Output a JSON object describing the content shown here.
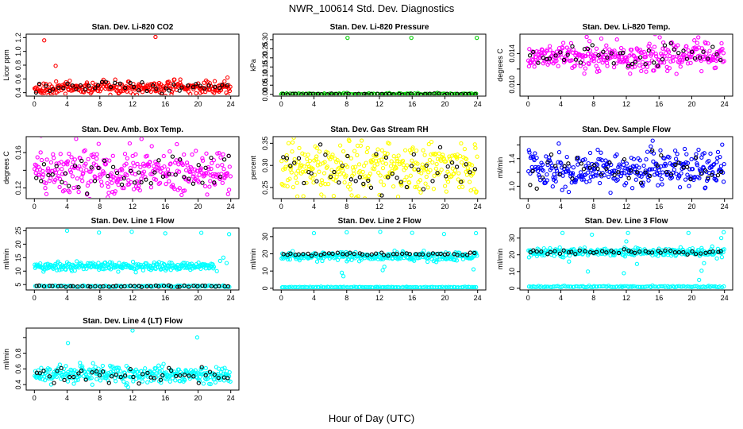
{
  "figure": {
    "title": "NWR_100614  Std. Dev. Diagnostics",
    "xlabel": "Hour of Day (UTC)"
  },
  "chart_data": [
    {
      "type": "scatter",
      "title": "Stan. Dev. Li-820 CO2",
      "ylabel": "Licor ppm",
      "xlim": [
        -1,
        25
      ],
      "ylim": [
        0.35,
        1.25
      ],
      "xticks": [
        0,
        4,
        8,
        12,
        16,
        20,
        24
      ],
      "yticks": [
        0.4,
        0.6,
        0.8,
        1.0,
        1.2
      ],
      "ytick_labels": [
        "0.4",
        "0.6",
        "0.8",
        "1.0",
        "1.2"
      ],
      "series": [
        {
          "color": "#ff0000",
          "count": 300,
          "base": 0.47,
          "spread": 0.045,
          "x_range": [
            0,
            24
          ],
          "outliers": [
            {
              "x": 1.2,
              "y": 1.16
            },
            {
              "x": 2.6,
              "y": 0.79
            },
            {
              "x": 14.8,
              "y": 1.21
            },
            {
              "x": 23.6,
              "y": 0.62
            }
          ]
        },
        {
          "color": "#000000",
          "count": 44,
          "base": 0.48,
          "spread": 0.045,
          "x_range": [
            0,
            24
          ]
        }
      ]
    },
    {
      "type": "scatter",
      "title": "Stan. Dev. Li-820 Pressure",
      "ylabel": "kPa",
      "xlim": [
        -1,
        25
      ],
      "ylim": [
        -0.01,
        0.33
      ],
      "xticks": [
        0,
        4,
        8,
        12,
        16,
        20,
        24
      ],
      "yticks": [
        0.0,
        0.05,
        0.1,
        0.15,
        0.2,
        0.25,
        0.3
      ],
      "ytick_labels": [
        "0.00",
        "0.05",
        "0.10",
        "0.15",
        "0.20",
        "0.25",
        "0.30"
      ],
      "series": [
        {
          "color": "#00cc00",
          "count": 120,
          "base": 0.002,
          "spread": 0.002,
          "x_range": [
            0,
            24
          ],
          "outliers": [
            {
              "x": 8.1,
              "y": 0.31
            },
            {
              "x": 15.9,
              "y": 0.31
            },
            {
              "x": 23.9,
              "y": 0.31
            },
            {
              "x": 0.0,
              "y": 0.0
            }
          ]
        },
        {
          "color": "#000000",
          "count": 44,
          "base": 0.0015,
          "spread": 0.0015,
          "x_range": [
            0,
            24
          ]
        }
      ]
    },
    {
      "type": "scatter",
      "title": "Stan. Dev. Li-820 Temp.",
      "ylabel": "degrees C",
      "xlim": [
        -1,
        25
      ],
      "ylim": [
        0.0085,
        0.0165
      ],
      "xticks": [
        0,
        4,
        8,
        12,
        16,
        20,
        24
      ],
      "yticks": [
        0.01,
        0.012,
        0.014
      ],
      "ytick_labels": [
        "0.010",
        "",
        "0.014"
      ],
      "series": [
        {
          "color": "#ff00ff",
          "count": 330,
          "base": 0.0137,
          "spread": 0.0009,
          "x_range": [
            0,
            24
          ]
        },
        {
          "color": "#000000",
          "count": 46,
          "base": 0.0138,
          "spread": 0.0008,
          "x_range": [
            0,
            24
          ]
        }
      ]
    },
    {
      "type": "scatter",
      "title": "Stan. Dev. Amb. Box Temp.",
      "ylabel": "degrees C",
      "xlim": [
        -1,
        25
      ],
      "ylim": [
        0.108,
        0.178
      ],
      "xticks": [
        0,
        4,
        8,
        12,
        16,
        20,
        24
      ],
      "yticks": [
        0.12,
        0.14,
        0.16
      ],
      "ytick_labels": [
        "0.12",
        "",
        "0.16"
      ],
      "series": [
        {
          "color": "#ff00ff",
          "count": 330,
          "base": 0.138,
          "spread": 0.014,
          "x_range": [
            0,
            24
          ]
        },
        {
          "color": "#000000",
          "count": 46,
          "base": 0.136,
          "spread": 0.01,
          "x_range": [
            0,
            24
          ]
        }
      ]
    },
    {
      "type": "scatter",
      "title": "Stan. Dev. Gas Stream RH",
      "ylabel": "percent",
      "xlim": [
        -1,
        25
      ],
      "ylim": [
        0.225,
        0.365
      ],
      "xticks": [
        0,
        4,
        8,
        12,
        16,
        20,
        24
      ],
      "yticks": [
        0.25,
        0.3,
        0.35
      ],
      "ytick_labels": [
        "0.25",
        "0.30",
        "0.35"
      ],
      "series": [
        {
          "color": "#ffff00",
          "count": 330,
          "base": 0.292,
          "spread": 0.028,
          "x_range": [
            0,
            24
          ]
        },
        {
          "color": "#000000",
          "count": 46,
          "base": 0.29,
          "spread": 0.024,
          "x_range": [
            0,
            24
          ]
        }
      ]
    },
    {
      "type": "scatter",
      "title": "Stan. Dev. Sample Flow",
      "ylabel": "ml/min",
      "xlim": [
        -1,
        25
      ],
      "ylim": [
        0.82,
        1.72
      ],
      "xticks": [
        0,
        4,
        8,
        12,
        16,
        20,
        24
      ],
      "yticks": [
        1.0,
        1.2,
        1.4,
        1.6
      ],
      "ytick_labels": [
        "1.0",
        "",
        "1.4",
        ""
      ],
      "series": [
        {
          "color": "#0000ff",
          "count": 330,
          "base": 1.24,
          "spread": 0.13,
          "x_range": [
            0,
            24
          ]
        },
        {
          "color": "#000000",
          "count": 46,
          "base": 1.25,
          "spread": 0.12,
          "x_range": [
            0,
            24
          ]
        }
      ]
    },
    {
      "type": "scatter",
      "title": "Stan. Dev. Line 1 Flow",
      "ylabel": "ml/min",
      "xlim": [
        -1,
        25
      ],
      "ylim": [
        3,
        26
      ],
      "xticks": [
        0,
        4,
        8,
        12,
        16,
        20,
        24
      ],
      "yticks": [
        5,
        10,
        15,
        20,
        25
      ],
      "ytick_labels": [
        "5",
        "10",
        "15",
        "20",
        "25"
      ],
      "series": [
        {
          "color": "#00ffff",
          "count": 260,
          "base": 11.8,
          "spread": 0.8,
          "x_range": [
            0,
            22
          ],
          "outliers": [
            {
              "x": 4.0,
              "y": 25.0
            },
            {
              "x": 7.9,
              "y": 24.3
            },
            {
              "x": 11.9,
              "y": 24.6
            },
            {
              "x": 16.0,
              "y": 24.0
            },
            {
              "x": 20.4,
              "y": 24.2
            },
            {
              "x": 23.8,
              "y": 23.7
            },
            {
              "x": 22.7,
              "y": 13.8
            },
            {
              "x": 23.1,
              "y": 15.0
            },
            {
              "x": 22.3,
              "y": 10.0
            },
            {
              "x": 23.5,
              "y": 13.0
            },
            {
              "x": 21.8,
              "y": 12.5
            }
          ]
        },
        {
          "color": "#00ffff",
          "count": 120,
          "base": 4.4,
          "spread": 0.15,
          "x_range": [
            0,
            24
          ]
        },
        {
          "color": "#000000",
          "count": 46,
          "base": 4.4,
          "spread": 0.12,
          "x_range": [
            0,
            24
          ]
        }
      ]
    },
    {
      "type": "scatter",
      "title": "Stan. Dev. Line 2 Flow",
      "ylabel": "ml/min",
      "xlim": [
        -1,
        25
      ],
      "ylim": [
        -1,
        35
      ],
      "xticks": [
        0,
        4,
        8,
        12,
        16,
        20,
        24
      ],
      "yticks": [
        0,
        10,
        20,
        30
      ],
      "ytick_labels": [
        "0",
        "10",
        "20",
        "30"
      ],
      "series": [
        {
          "color": "#00ffff",
          "count": 280,
          "base": 18.5,
          "spread": 1.2,
          "x_range": [
            0,
            24
          ],
          "outliers": [
            {
              "x": 4.0,
              "y": 32.0
            },
            {
              "x": 8.0,
              "y": 32.5
            },
            {
              "x": 12.1,
              "y": 32.8
            },
            {
              "x": 16.0,
              "y": 32.2
            },
            {
              "x": 19.9,
              "y": 31.5
            },
            {
              "x": 23.8,
              "y": 32.0
            },
            {
              "x": 7.4,
              "y": 9.0
            },
            {
              "x": 7.6,
              "y": 7.0
            },
            {
              "x": 12.6,
              "y": 12.5
            },
            {
              "x": 12.4,
              "y": 10.5
            },
            {
              "x": 23.5,
              "y": 11.0
            }
          ]
        },
        {
          "color": "#00ffff",
          "count": 120,
          "base": 0.6,
          "spread": 0.15,
          "x_range": [
            0,
            24
          ]
        },
        {
          "color": "#000000",
          "count": 46,
          "base": 19.8,
          "spread": 0.5,
          "x_range": [
            0,
            24
          ]
        }
      ]
    },
    {
      "type": "scatter",
      "title": "Stan. Dev. Line 3 Flow",
      "ylabel": "ml/min",
      "xlim": [
        -1,
        25
      ],
      "ylim": [
        -1,
        36
      ],
      "xticks": [
        0,
        4,
        8,
        12,
        16,
        20,
        24
      ],
      "yticks": [
        0,
        10,
        20,
        30
      ],
      "ytick_labels": [
        "0",
        "10",
        "20",
        "30"
      ],
      "series": [
        {
          "color": "#00ffff",
          "count": 280,
          "base": 21.5,
          "spread": 1.2,
          "x_range": [
            0,
            24
          ],
          "outliers": [
            {
              "x": 4.2,
              "y": 33.0
            },
            {
              "x": 7.8,
              "y": 32.0
            },
            {
              "x": 12.2,
              "y": 33.0
            },
            {
              "x": 12.0,
              "y": 28.0
            },
            {
              "x": 13.3,
              "y": 14.5
            },
            {
              "x": 7.3,
              "y": 10.0
            },
            {
              "x": 11.7,
              "y": 9.0
            },
            {
              "x": 5.0,
              "y": 16.0
            },
            {
              "x": 19.6,
              "y": 33.0
            },
            {
              "x": 21.2,
              "y": 10.5
            },
            {
              "x": 20.9,
              "y": 5.0
            },
            {
              "x": 21.5,
              "y": 15.0
            },
            {
              "x": 22.5,
              "y": 25.0
            },
            {
              "x": 23.6,
              "y": 30.0
            },
            {
              "x": 23.9,
              "y": 33.5
            }
          ]
        },
        {
          "color": "#00ffff",
          "count": 120,
          "base": 1.0,
          "spread": 0.25,
          "x_range": [
            0,
            24
          ]
        },
        {
          "color": "#000000",
          "count": 46,
          "base": 21.8,
          "spread": 0.6,
          "x_range": [
            0,
            24
          ]
        }
      ]
    },
    {
      "type": "scatter",
      "title": "Stan. Dev. Line 4 (LT) Flow",
      "ylabel": "ml/min",
      "xlim": [
        -1,
        25
      ],
      "ylim": [
        0.33,
        1.12
      ],
      "xticks": [
        0,
        4,
        8,
        12,
        16,
        20,
        24
      ],
      "yticks": [
        0.4,
        0.6,
        0.8,
        1.0
      ],
      "ytick_labels": [
        "0.4",
        "0.6",
        "0.8",
        ""
      ],
      "series": [
        {
          "color": "#00ffff",
          "count": 320,
          "base": 0.53,
          "spread": 0.055,
          "x_range": [
            0,
            24
          ],
          "outliers": [
            {
              "x": 4.1,
              "y": 0.93
            },
            {
              "x": 12.0,
              "y": 1.09
            },
            {
              "x": 19.9,
              "y": 1.0
            }
          ]
        },
        {
          "color": "#000000",
          "count": 46,
          "base": 0.52,
          "spread": 0.05,
          "x_range": [
            0,
            24
          ]
        }
      ]
    }
  ]
}
